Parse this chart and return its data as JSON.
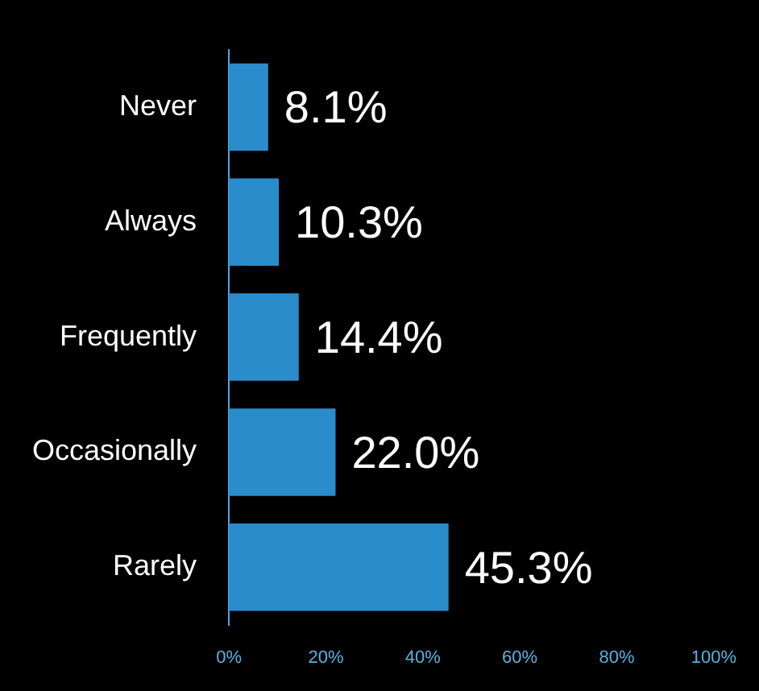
{
  "chart_data": {
    "type": "bar",
    "orientation": "horizontal",
    "categories": [
      "Never",
      "Always",
      "Frequently",
      "Occasionally",
      "Rarely"
    ],
    "values": [
      8.1,
      10.3,
      14.4,
      22.0,
      45.3
    ],
    "value_labels": [
      "8.1%",
      "10.3%",
      "14.4%",
      "22.0%",
      "45.3%"
    ],
    "color": "#2b8ccc",
    "xlim": [
      0,
      100
    ],
    "xticks": [
      {
        "value": 0,
        "label": "0%"
      },
      {
        "value": 20,
        "label": "20%"
      },
      {
        "value": 40,
        "label": "40%"
      },
      {
        "value": 60,
        "label": "60%"
      },
      {
        "value": 80,
        "label": "80%"
      },
      {
        "value": 100,
        "label": "100%"
      }
    ],
    "grid": false,
    "legend": false
  }
}
